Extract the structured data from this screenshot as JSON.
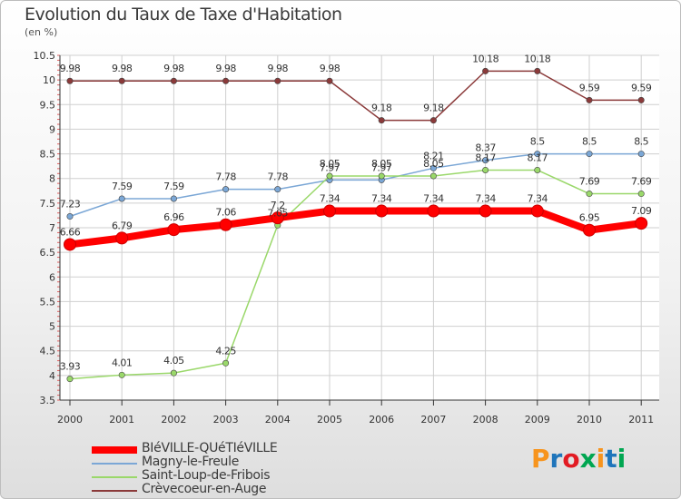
{
  "header": {
    "title": "Evolution du Taux de Taxe d'Habitation",
    "unit": "(en %)"
  },
  "logo": {
    "text": "Proxiti",
    "colors": [
      "#f7941d",
      "#1f75bb",
      "#e21b23",
      "#00a651",
      "#f7941d",
      "#1f75bb",
      "#00a651"
    ]
  },
  "chart_data": {
    "type": "line",
    "categories": [
      "2000",
      "2001",
      "2002",
      "2003",
      "2004",
      "2005",
      "2006",
      "2007",
      "2008",
      "2009",
      "2010",
      "2011"
    ],
    "ylim": [
      3.5,
      10.5
    ],
    "yticks": [
      "3.5",
      "4",
      "4.5",
      "5",
      "5.5",
      "6",
      "6.5",
      "7",
      "7.5",
      "8",
      "8.5",
      "9",
      "9.5",
      "10",
      "10.5"
    ],
    "grid": true,
    "legend_position": "bottom-left",
    "series": [
      {
        "name": "BIéVILLE-QUéTIéVILLE",
        "color": "#ff0000",
        "values": [
          6.66,
          6.79,
          6.96,
          7.06,
          7.2,
          7.34,
          7.34,
          7.34,
          7.34,
          7.34,
          6.95,
          7.09
        ],
        "labels": [
          "6.66",
          "6.79",
          "6.96",
          "7.06",
          "7.2",
          "7.34",
          "7.34",
          "7.34",
          "7.34",
          "7.34",
          "6.95",
          "7.09"
        ]
      },
      {
        "name": "Magny-le-Freule",
        "color": "#7ba7d6",
        "values": [
          7.23,
          7.59,
          7.59,
          7.78,
          7.78,
          7.97,
          7.97,
          8.21,
          8.37,
          8.5,
          8.5,
          8.5
        ],
        "labels": [
          "7.23",
          "7.59",
          "7.59",
          "7.78",
          "7.78",
          "7.97",
          "7.97",
          "8.21",
          "8.37",
          "8.5",
          "8.5",
          "8.5"
        ]
      },
      {
        "name": "Saint-Loup-de-Fribois",
        "color": "#9ad86a",
        "values": [
          3.93,
          4.01,
          4.05,
          4.25,
          7.05,
          8.05,
          8.05,
          8.05,
          8.17,
          8.17,
          7.69,
          7.69
        ],
        "labels": [
          "3.93",
          "4.01",
          "4.05",
          "4.25",
          "7.05",
          "8.05",
          "8.05",
          "8.05",
          "8.17",
          "8.17",
          "7.69",
          "7.69"
        ]
      },
      {
        "name": "Crèvecoeur-en-Auge",
        "color": "#8b3a3a",
        "values": [
          9.98,
          9.98,
          9.98,
          9.98,
          9.98,
          9.98,
          9.18,
          9.18,
          10.18,
          10.18,
          9.59,
          9.59
        ],
        "labels": [
          "9.98",
          "9.98",
          "9.98",
          "9.98",
          "9.98",
          "9.98",
          "9.18",
          "9.18",
          "10.18",
          "10.18",
          "9.59",
          "9.59"
        ]
      }
    ]
  }
}
